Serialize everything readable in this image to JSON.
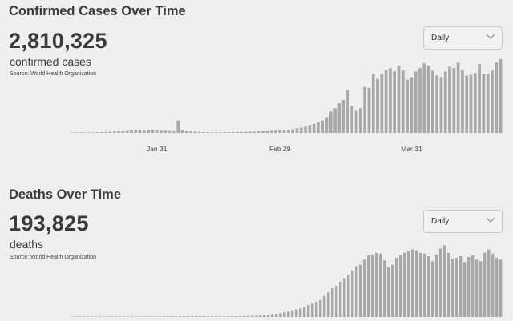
{
  "panels": [
    {
      "title": "Confirmed Cases Over Time",
      "total": "2,810,325",
      "unit": "confirmed cases",
      "source": "Source: World Health Organization",
      "dropdown": {
        "selected": "Daily",
        "icon": "chevron-down-icon"
      }
    },
    {
      "title": "Deaths Over Time",
      "total": "193,825",
      "unit": "deaths",
      "source": "Source: World Health Organization",
      "dropdown": {
        "selected": "Daily",
        "icon": "chevron-down-icon"
      }
    }
  ],
  "colors": {
    "bar": "#a8a8a8",
    "background": "#efefef",
    "text": "#3a3a3a"
  },
  "chart_data": [
    {
      "type": "bar",
      "title": "Confirmed Cases Over Time",
      "x_start": "2020-01-11",
      "x_tick_labels": [
        "Jan 31",
        "Feb 29",
        "Mar 31"
      ],
      "x_tick_dates": [
        "2020-01-31",
        "2020-02-29",
        "2020-03-31"
      ],
      "ylim": [
        0,
        90000
      ],
      "grid": false,
      "values": [
        0,
        0,
        0,
        0,
        500,
        600,
        800,
        1000,
        1200,
        1500,
        1800,
        2000,
        2200,
        2500,
        2800,
        3000,
        3200,
        3300,
        3100,
        3000,
        2800,
        2600,
        2500,
        2300,
        2100,
        15000,
        3500,
        2000,
        1800,
        1500,
        1200,
        1000,
        900,
        800,
        700,
        700,
        800,
        900,
        1000,
        1100,
        1200,
        1300,
        1500,
        1600,
        1800,
        2000,
        2200,
        2500,
        2800,
        3000,
        3500,
        4000,
        4500,
        5500,
        6500,
        8000,
        9500,
        11000,
        13000,
        15000,
        19000,
        26000,
        30000,
        36000,
        40000,
        52000,
        33000,
        27000,
        30000,
        56000,
        55000,
        72000,
        66000,
        72000,
        77000,
        79000,
        75000,
        82000,
        76000,
        65000,
        68000,
        75000,
        79000,
        85000,
        82000,
        76000,
        70000,
        68000,
        75000,
        81000,
        79000,
        86000,
        77000,
        70000,
        71000,
        73000,
        84000,
        72000,
        72000,
        76000,
        86000,
        90000
      ]
    },
    {
      "type": "bar",
      "title": "Deaths Over Time",
      "x_start": "2020-01-11",
      "ylim": [
        0,
        9000
      ],
      "grid": false,
      "values": [
        0,
        0,
        0,
        0,
        0,
        0,
        0,
        5,
        10,
        15,
        20,
        25,
        30,
        30,
        35,
        40,
        45,
        50,
        55,
        60,
        65,
        65,
        70,
        70,
        75,
        80,
        85,
        90,
        90,
        95,
        100,
        100,
        100,
        100,
        90,
        85,
        80,
        80,
        85,
        90,
        95,
        100,
        110,
        120,
        130,
        150,
        170,
        200,
        230,
        270,
        320,
        380,
        450,
        550,
        650,
        800,
        900,
        1000,
        1200,
        1400,
        1600,
        1800,
        2000,
        2500,
        2900,
        3400,
        3700,
        4200,
        4600,
        5000,
        5500,
        6000,
        6200,
        6800,
        7300,
        7400,
        7600,
        7500,
        6700,
        5900,
        6200,
        7000,
        7300,
        7600,
        7800,
        8000,
        7900,
        7600,
        7500,
        7200,
        6600,
        7400,
        8100,
        8500,
        7600,
        6900,
        7000,
        7200,
        6500,
        7100,
        7300,
        6800,
        6600,
        7600,
        8000,
        7500,
        7000,
        6800
      ]
    }
  ]
}
